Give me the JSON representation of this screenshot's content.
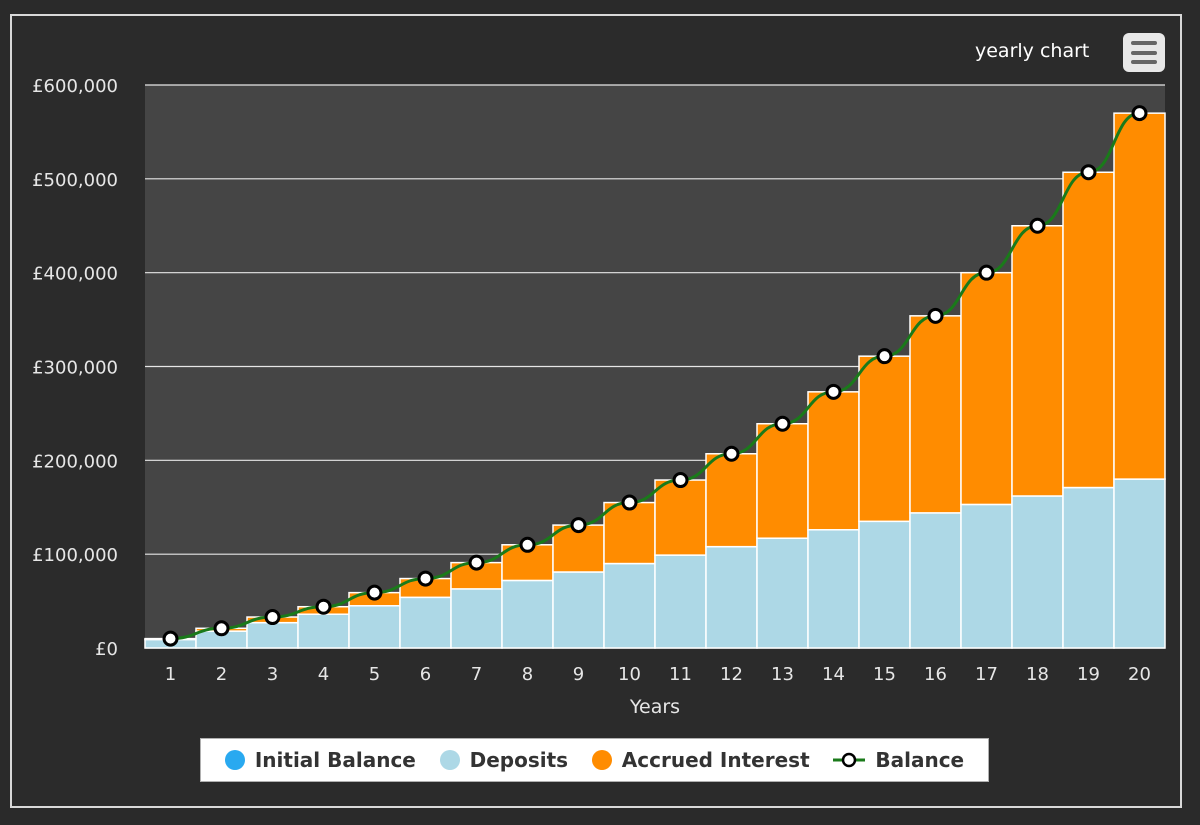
{
  "chart_title": "yearly chart",
  "menu_icon": "hamburger-menu-icon",
  "colors": {
    "initial_balance": "#29a9f0",
    "deposits": "#add8e6",
    "accrued_interest": "#ff8c00",
    "balance_line": "#1a7a1a",
    "plot_background": "#454545",
    "gridline": "#e6e6e6",
    "axis_text": "#e6e6e6"
  },
  "chart_data": {
    "type": "bar",
    "stacked": true,
    "xlabel": "Years",
    "ylabel": "",
    "ylim": [
      0,
      600000
    ],
    "grid": true,
    "legend_position": "bottom-center",
    "y_ticks": [
      "£0",
      "£100,000",
      "£200,000",
      "£300,000",
      "£400,000",
      "£500,000",
      "£600,000"
    ],
    "y_tick_values": [
      0,
      100000,
      200000,
      300000,
      400000,
      500000,
      600000
    ],
    "categories": [
      "1",
      "2",
      "3",
      "4",
      "5",
      "6",
      "7",
      "8",
      "9",
      "10",
      "11",
      "12",
      "13",
      "14",
      "15",
      "16",
      "17",
      "18",
      "19",
      "20"
    ],
    "series": [
      {
        "name": "Initial Balance",
        "type": "bar",
        "values": [
          0,
          0,
          0,
          0,
          0,
          0,
          0,
          0,
          0,
          0,
          0,
          0,
          0,
          0,
          0,
          0,
          0,
          0,
          0,
          0
        ]
      },
      {
        "name": "Deposits",
        "type": "bar",
        "values": [
          9000,
          18000,
          27000,
          36000,
          45000,
          54000,
          63000,
          72000,
          81000,
          90000,
          99000,
          108000,
          117000,
          126000,
          135000,
          144000,
          153000,
          162000,
          171000,
          180000
        ]
      },
      {
        "name": "Accrued Interest",
        "type": "bar",
        "values": [
          1000,
          3000,
          6000,
          8000,
          14000,
          20000,
          28000,
          38000,
          50000,
          65000,
          80000,
          99000,
          122000,
          147000,
          176000,
          210000,
          247000,
          288000,
          336000,
          390000
        ]
      },
      {
        "name": "Balance",
        "type": "line",
        "values": [
          10000,
          21000,
          33000,
          44000,
          59000,
          74000,
          91000,
          110000,
          131000,
          155000,
          179000,
          207000,
          239000,
          273000,
          311000,
          354000,
          400000,
          450000,
          507000,
          570000
        ]
      }
    ]
  },
  "legend": [
    {
      "label": "Initial Balance",
      "kind": "dot",
      "color": "#29a9f0"
    },
    {
      "label": "Deposits",
      "kind": "dot",
      "color": "#add8e6"
    },
    {
      "label": "Accrued Interest",
      "kind": "dot",
      "color": "#ff8c00"
    },
    {
      "label": "Balance",
      "kind": "line-marker",
      "color": "#1a7a1a"
    }
  ]
}
